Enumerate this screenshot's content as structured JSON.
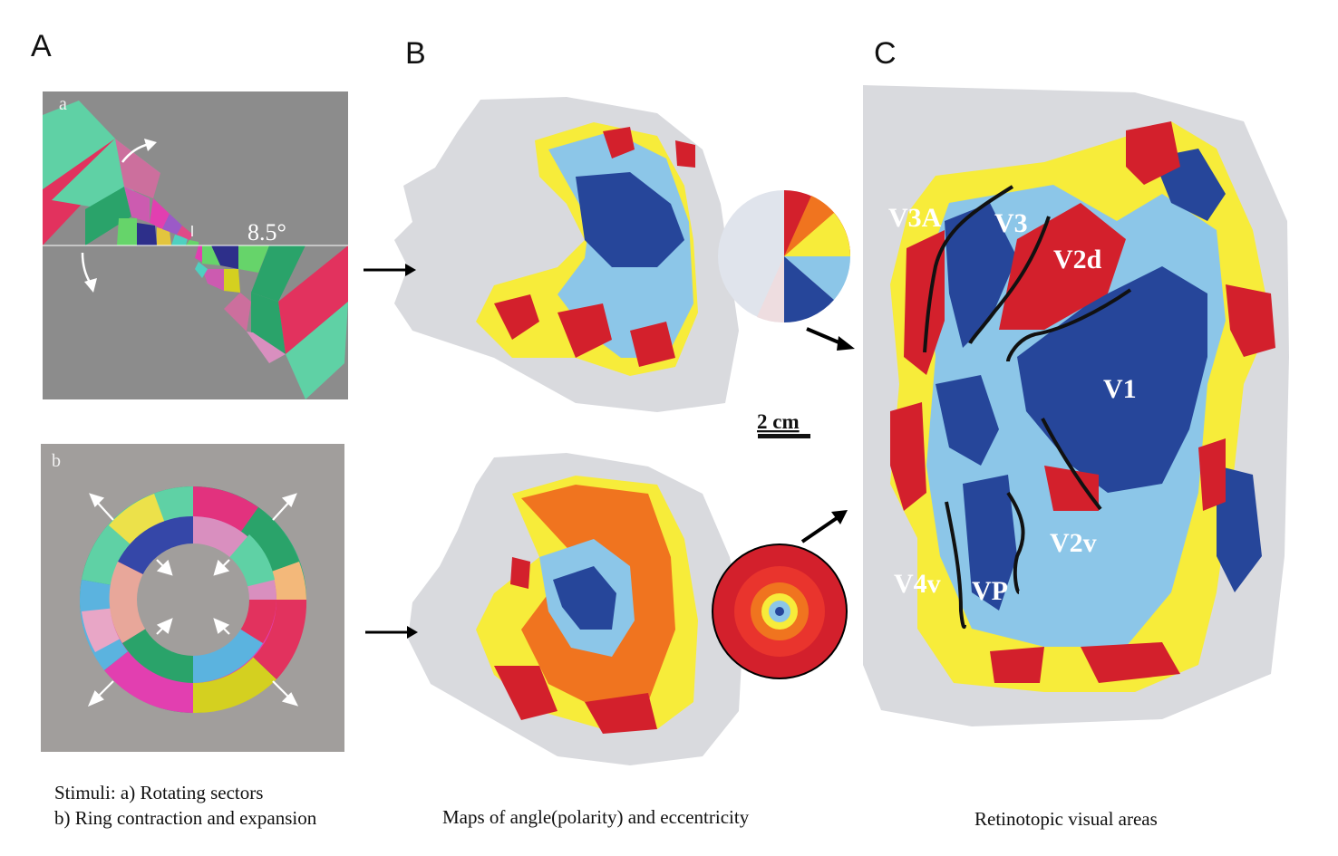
{
  "panels": {
    "A": {
      "letter": "A",
      "sub_a": "a",
      "sub_b": "b",
      "angle_label": "8.5°",
      "caption_line1": "Stimuli: a) Rotating sectors",
      "caption_line2": "b) Ring contraction and expansion"
    },
    "B": {
      "letter": "B",
      "scale_label": "2 cm",
      "caption": "Maps of angle(polarity) and eccentricity"
    },
    "C": {
      "letter": "C",
      "caption": "Retinotopic visual areas",
      "area_labels": {
        "v3a": "V3A",
        "v3": "V3",
        "v2d": "V2d",
        "v1": "V1",
        "v2v": "V2v",
        "v4v": "V4v",
        "vp": "VP"
      }
    }
  },
  "colors": {
    "red": "#d3202c",
    "yellow": "#f7ec3a",
    "light_blue": "#8cc6e8",
    "dark_blue": "#26469a",
    "gray_bg": "#8c8c8c",
    "map_gray": "#d9dade"
  }
}
